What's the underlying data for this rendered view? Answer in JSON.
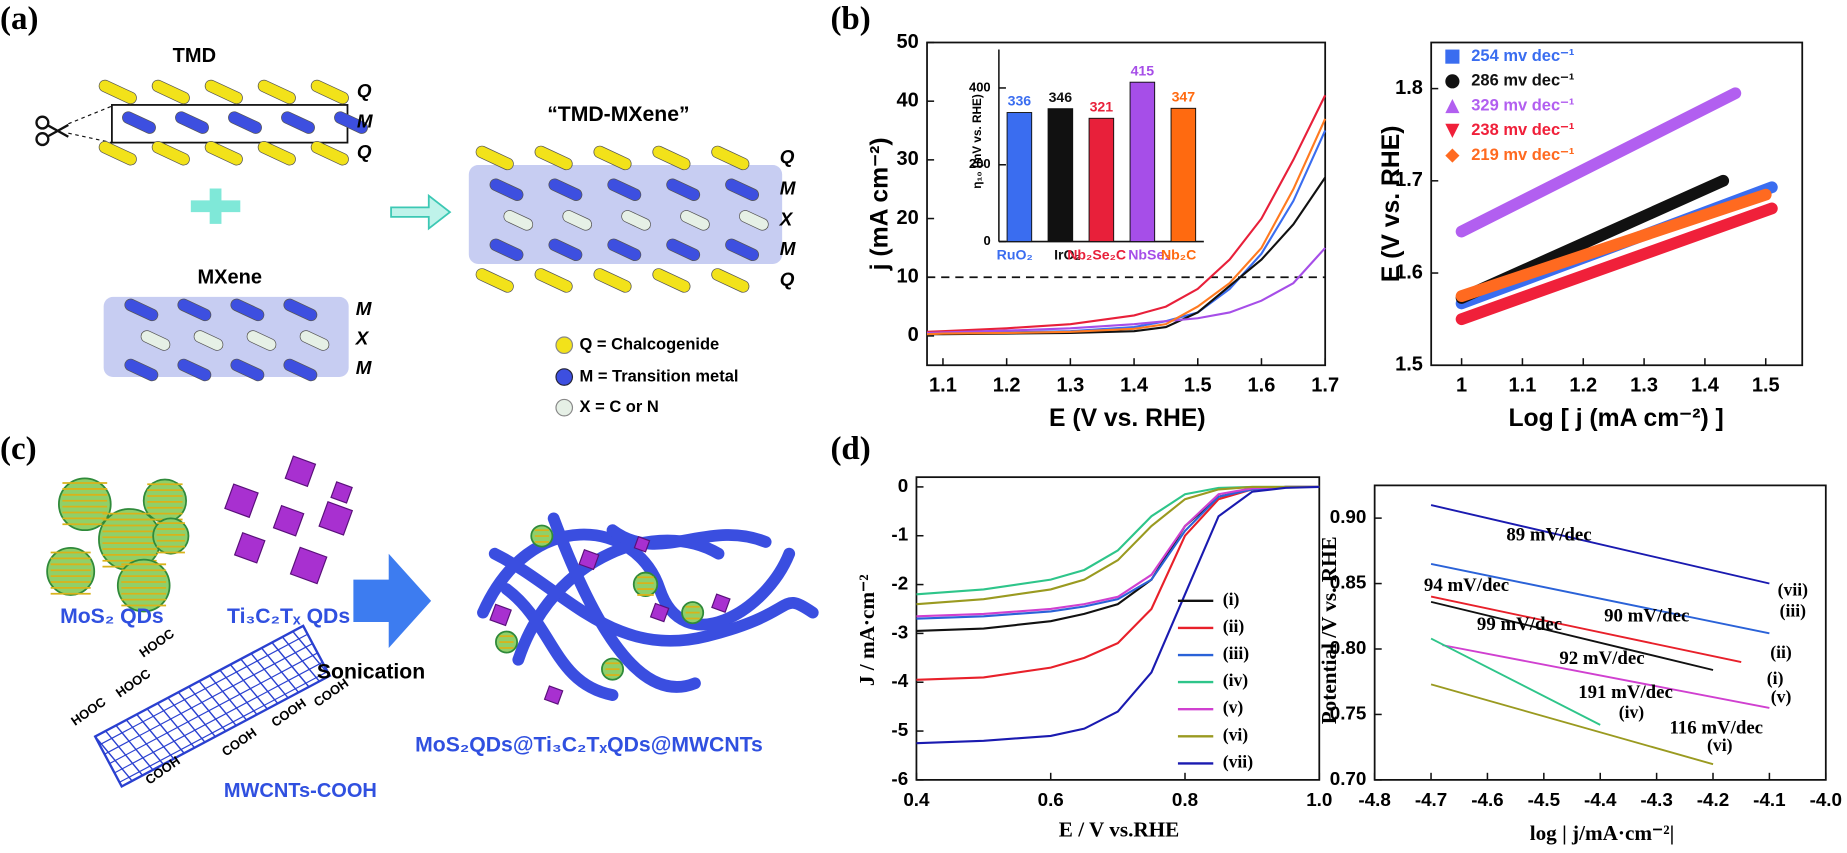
{
  "panels": {
    "a": {
      "label": "(a)",
      "tmd": "TMD",
      "tmd_layers": [
        "Q",
        "M",
        "Q"
      ],
      "mxene": "MXene",
      "mxene_layers": [
        "M",
        "X",
        "M"
      ],
      "hybrid": "“TMD-MXene”",
      "hybrid_layers": [
        "Q",
        "M",
        "X",
        "M",
        "Q"
      ],
      "key": [
        "Q = Chalcogenide",
        "M = Transition metal",
        "X = C or N"
      ]
    },
    "b": {
      "label": "(b)"
    },
    "c": {
      "label": "(c)",
      "mos2": "MoS₂ QDs",
      "ti3c2": "Ti₃C₂Tₓ QDs",
      "hooc": [
        "HOOC",
        "HOOC",
        "HOOC"
      ],
      "cooh": [
        "COOH",
        "COOH",
        "COOH",
        "COOH"
      ],
      "mwcnt": "MWCNTs-COOH",
      "sonication": "Sonication",
      "product": "MoS₂QDs@Ti₃C₂TₓQDs@MWCNTs"
    },
    "d": {
      "label": "(d)"
    }
  },
  "chart_data": [
    {
      "type": "line",
      "xlabel": "E (V vs. RHE)",
      "ylabel": "j (mA cm⁻²)",
      "x": [
        1.075,
        1.1,
        1.2,
        1.3,
        1.4,
        1.45,
        1.5,
        1.55,
        1.6,
        1.65,
        1.7
      ],
      "series": [
        {
          "color": "#3a6df0",
          "values": [
            0.4,
            0.5,
            0.6,
            0.8,
            1.5,
            2.5,
            4,
            8,
            14,
            23,
            35
          ]
        },
        {
          "color": "#111111",
          "values": [
            0.3,
            0.3,
            0.4,
            0.5,
            0.8,
            1.5,
            4,
            8.5,
            13,
            19,
            27
          ]
        },
        {
          "color": "#e8203a",
          "values": [
            0.7,
            0.8,
            1.3,
            2,
            3.5,
            5,
            8,
            13,
            20,
            30,
            41
          ]
        },
        {
          "color": "#a64ee8",
          "values": [
            0.5,
            0.6,
            0.9,
            1.3,
            2,
            2.5,
            3,
            4,
            6,
            9,
            15
          ]
        },
        {
          "color": "#ff7a20",
          "values": [
            0.3,
            0.4,
            0.5,
            0.7,
            1.2,
            2,
            5,
            9,
            15,
            25,
            37
          ]
        }
      ],
      "reference_line": 10,
      "xlim": [
        1.075,
        1.7
      ],
      "ylim": [
        -5,
        50
      ],
      "xticks": [
        1.1,
        1.2,
        1.3,
        1.4,
        1.5,
        1.6,
        1.7
      ],
      "yticks": [
        0,
        10,
        20,
        30,
        40,
        50
      ],
      "grid": false
    },
    {
      "type": "bar",
      "ylabel": "η₁₀ (mV vs. RHE)",
      "categories": [
        "RuO₂",
        "IrO₂",
        "Nb₂Se₂C",
        "NbSe₂",
        "Nb₂C"
      ],
      "values": [
        336,
        346,
        321,
        415,
        347
      ],
      "colors": [
        "#3a6df0",
        "#111111",
        "#e8203a",
        "#a64ee8",
        "#ff6a10"
      ],
      "ylim": [
        0,
        500
      ],
      "yticks": [
        0,
        200,
        400
      ],
      "grid": false
    },
    {
      "type": "line",
      "xlabel": "Log [ j (mA cm⁻²) ]",
      "ylabel": "E (V vs. RHE)",
      "legend": "upper left",
      "series": [
        {
          "name": "254 mv dec⁻¹",
          "color": "#3a6df0",
          "marker": "square",
          "x": [
            1.0,
            1.51
          ],
          "values": [
            1.567,
            1.693
          ]
        },
        {
          "name": "286 mv dec⁻¹",
          "color": "#111111",
          "marker": "circle",
          "x": [
            1.0,
            1.43
          ],
          "values": [
            1.573,
            1.7
          ]
        },
        {
          "name": "329 mv dec⁻¹",
          "color": "#b25ff0",
          "marker": "triangle-up",
          "x": [
            1.0,
            1.45
          ],
          "values": [
            1.645,
            1.795
          ]
        },
        {
          "name": "238 mv dec⁻¹",
          "color": "#f0203a",
          "marker": "triangle-down",
          "x": [
            1.0,
            1.51
          ],
          "values": [
            1.55,
            1.67
          ]
        },
        {
          "name": "219 mv dec⁻¹",
          "color": "#ff6a20",
          "marker": "diamond",
          "x": [
            1.0,
            1.5
          ],
          "values": [
            1.575,
            1.685
          ]
        }
      ],
      "xlim": [
        0.95,
        1.56
      ],
      "ylim": [
        1.5,
        1.85
      ],
      "xticks": [
        1.0,
        1.1,
        1.2,
        1.3,
        1.4,
        1.5
      ],
      "yticks": [
        1.5,
        1.6,
        1.7,
        1.8
      ],
      "grid": false
    },
    {
      "type": "line",
      "xlabel": "E / V vs.RHE",
      "ylabel": "J / mA·cm⁻²",
      "legend": "lower right",
      "x": [
        0.4,
        0.5,
        0.6,
        0.65,
        0.7,
        0.75,
        0.8,
        0.85,
        0.9,
        0.95,
        1.0
      ],
      "series": [
        {
          "name": "(i)",
          "color": "#111111",
          "values": [
            -2.95,
            -2.9,
            -2.75,
            -2.6,
            -2.4,
            -1.9,
            -0.8,
            -0.2,
            -0.05,
            0,
            0
          ]
        },
        {
          "name": "(ii)",
          "color": "#e8202a",
          "values": [
            -3.95,
            -3.9,
            -3.7,
            -3.5,
            -3.2,
            -2.5,
            -1.0,
            -0.25,
            -0.05,
            0,
            0
          ]
        },
        {
          "name": "(iii)",
          "color": "#2a62d8",
          "values": [
            -2.7,
            -2.65,
            -2.55,
            -2.45,
            -2.3,
            -1.9,
            -0.9,
            -0.2,
            -0.05,
            0,
            0
          ]
        },
        {
          "name": "(iv)",
          "color": "#2ec58a",
          "values": [
            -2.2,
            -2.1,
            -1.9,
            -1.7,
            -1.3,
            -0.6,
            -0.15,
            -0.02,
            0,
            0,
            0
          ]
        },
        {
          "name": "(v)",
          "color": "#d040d0",
          "values": [
            -2.65,
            -2.6,
            -2.5,
            -2.4,
            -2.25,
            -1.8,
            -0.8,
            -0.15,
            -0.03,
            0,
            0
          ]
        },
        {
          "name": "(vi)",
          "color": "#9a9a20",
          "values": [
            -2.4,
            -2.3,
            -2.1,
            -1.9,
            -1.5,
            -0.8,
            -0.25,
            -0.05,
            0,
            0,
            0
          ]
        },
        {
          "name": "(vii)",
          "color": "#1a1ab0",
          "values": [
            -5.25,
            -5.2,
            -5.1,
            -4.95,
            -4.6,
            -3.8,
            -2.2,
            -0.6,
            -0.1,
            -0.02,
            0
          ]
        }
      ],
      "xlim": [
        0.4,
        1.0
      ],
      "ylim": [
        -6,
        0.2
      ],
      "xticks": [
        0.4,
        0.6,
        0.8,
        {
          "value": 1,
          "label": "1.0"
        }
      ],
      "yticks": [
        0,
        -1,
        -2,
        -3,
        -4,
        -5,
        -6
      ],
      "grid": false
    },
    {
      "type": "line",
      "xlabel": "log | j/mA·cm⁻²|",
      "ylabel": "Potential /V vs. RHE",
      "series": [
        {
          "name": "(vii)",
          "label": "89 mV/dec",
          "color": "#1a1ab0",
          "x": [
            -4.7,
            -4.1
          ],
          "values": [
            0.91,
            0.85
          ]
        },
        {
          "name": "(iii)",
          "label": "94 mV/dec",
          "color": "#2a62d8",
          "x": [
            -4.7,
            -4.1
          ],
          "values": [
            0.865,
            0.812
          ]
        },
        {
          "name": "(ii)",
          "label": "90 mV/dec",
          "color": "#e8202a",
          "x": [
            -4.7,
            -4.15
          ],
          "values": [
            0.84,
            0.79
          ]
        },
        {
          "name": "(i)",
          "label": "92 mV/dec",
          "color": "#111111",
          "x": [
            -4.7,
            -4.2
          ],
          "values": [
            0.836,
            0.784
          ]
        },
        {
          "name": "(v)",
          "label": "99 mV/dec",
          "color": "#d040d0",
          "x": [
            -4.68,
            -4.1
          ],
          "values": [
            0.803,
            0.755
          ]
        },
        {
          "name": "(iv)",
          "label": "191 mV/dec",
          "color": "#2ec58a",
          "x": [
            -4.7,
            -4.4
          ],
          "values": [
            0.808,
            0.742
          ]
        },
        {
          "name": "(vi)",
          "label": "116 mV/dec",
          "color": "#9a9a20",
          "x": [
            -4.7,
            -4.2
          ],
          "values": [
            0.773,
            0.712
          ]
        }
      ],
      "xlim": [
        -4.8,
        -4.0
      ],
      "ylim": [
        0.7,
        0.925
      ],
      "xticks": [
        -4.8,
        -4.7,
        -4.6,
        -4.5,
        -4.4,
        -4.3,
        -4.2,
        -4.1,
        {
          "value": -4,
          "label": "-4.0"
        }
      ],
      "yticks": [
        {
          "value": 0.7,
          "label": "0.70"
        },
        0.75,
        {
          "value": 0.8,
          "label": "0.80"
        },
        0.85,
        {
          "value": 0.9,
          "label": "0.90"
        }
      ],
      "grid": false
    }
  ]
}
